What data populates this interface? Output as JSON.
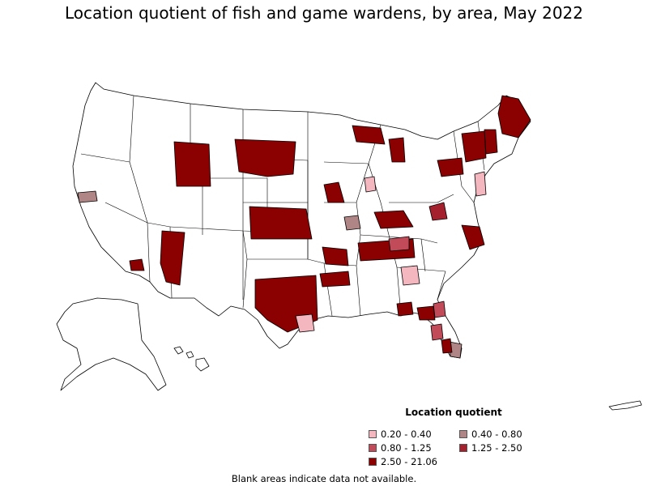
{
  "title": "Location quotient of fish and game wardens, by area, May 2022",
  "legend": {
    "title": "Location quotient",
    "items": [
      {
        "label": "0.20 - 0.40",
        "color": "#f4b6bf"
      },
      {
        "label": "0.40 - 0.80",
        "color": "#b08585"
      },
      {
        "label": "0.80 - 1.25",
        "color": "#c24b5a"
      },
      {
        "label": "1.25 - 2.50",
        "color": "#a3202c"
      },
      {
        "label": "2.50 - 21.06",
        "color": "#8b0000"
      }
    ]
  },
  "footnote": "Blank areas indicate data not available.",
  "map": {
    "boundary_color": "#000000",
    "fill_empty": "#ffffff",
    "regions": [
      {
        "name": "Wyoming",
        "class": "2.50 - 21.06"
      },
      {
        "name": "Western South Dakota",
        "class": "2.50 - 21.06"
      },
      {
        "name": "Kansas nonmetro",
        "class": "2.50 - 21.06"
      },
      {
        "name": "Eastern Arizona",
        "class": "2.50 - 21.06"
      },
      {
        "name": "Northern Maine",
        "class": "2.50 - 21.06"
      },
      {
        "name": "Northern Michigan",
        "class": "2.50 - 21.06"
      },
      {
        "name": "Tennessee areas",
        "class": "2.50 - 21.06"
      },
      {
        "name": "East Texas",
        "class": "2.50 - 21.06"
      },
      {
        "name": "Eastern Virginia",
        "class": "2.50 - 21.06"
      },
      {
        "name": "Florida panhandle",
        "class": "2.50 - 21.06"
      },
      {
        "name": "Northern California area",
        "class": "0.40 - 0.80"
      },
      {
        "name": "Houston area",
        "class": "0.20 - 0.40"
      },
      {
        "name": "Atlanta area",
        "class": "0.20 - 0.40"
      },
      {
        "name": "Indiana metro",
        "class": "0.20 - 0.40"
      },
      {
        "name": "Southern Illinois",
        "class": "0.40 - 0.80"
      },
      {
        "name": "South Florida",
        "class": "0.40 - 0.80"
      },
      {
        "name": "New Jersey",
        "class": "0.20 - 0.40"
      }
    ]
  }
}
